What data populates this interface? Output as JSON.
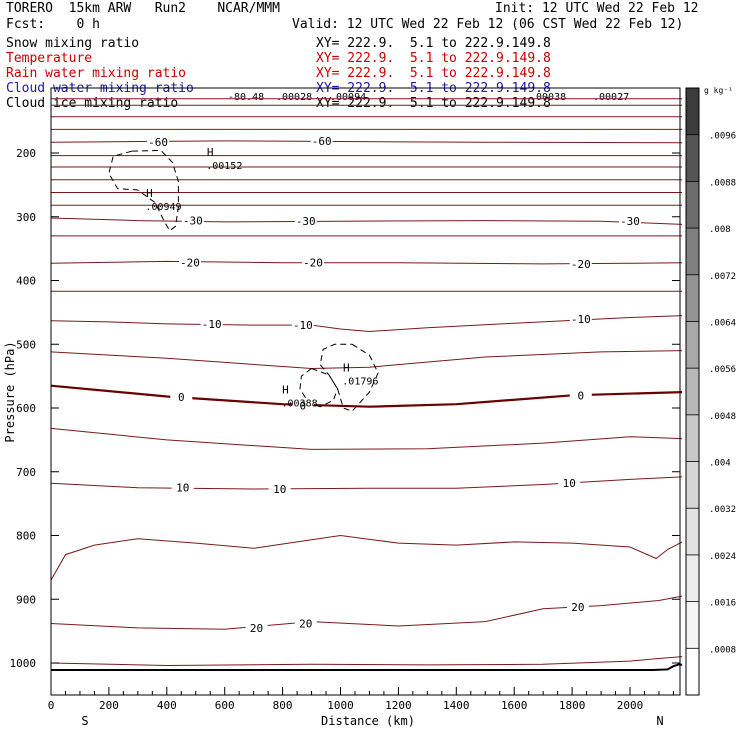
{
  "header": {
    "model": "TORERO  15km ARW   Run2    NCAR/MMM",
    "init": "Init: 12 UTC Wed 22 Feb 12",
    "fcst": "Fcst:    0 h",
    "valid": "Valid: 12 UTC Wed 22 Feb 12 (06 CST Wed 22 Feb 12)"
  },
  "fields": [
    {
      "name": "Snow mixing ratio",
      "xy": "XY= 222.9.  5.1 to 222.9.149.8",
      "color": "#000000"
    },
    {
      "name": "Temperature",
      "xy": "XY= 222.9.  5.1 to 222.9.149.8",
      "color": "#cc0000"
    },
    {
      "name": "Rain water mixing ratio",
      "xy": "XY= 222.9.  5.1 to 222.9.149.8",
      "color": "#cc0000"
    },
    {
      "name": "Cloud water mixing ratio",
      "xy": "XY= 222.9.  5.1 to 222.9.149.8",
      "color": "#1a1aa6"
    },
    {
      "name": "Cloud ice mixing ratio",
      "xy": "XY= 222.9.  5.1 to 222.9.149.8",
      "color": "#000000"
    }
  ],
  "top_values": [
    "-80.48",
    ".00028",
    ".00094",
    ".00038",
    ".00027"
  ],
  "colorbar": {
    "unit": "g kg⁻¹",
    "labels": [
      ".0096",
      ".0088",
      ".008",
      ".0072",
      ".0064",
      ".0056",
      ".0048",
      ".004",
      ".0032",
      ".0024",
      ".0016",
      ".0008"
    ],
    "shades": [
      "#3c3c3c",
      "#555555",
      "#6c6c6c",
      "#808080",
      "#949494",
      "#a8a8a8",
      "#b8b8b8",
      "#c8c8c8",
      "#d6d6d6",
      "#e2e2e2",
      "#ececec",
      "#f5f5f5",
      "#ffffff"
    ]
  },
  "chart_data": {
    "type": "contour",
    "xlabel": "Distance (km)",
    "ylabel": "Pressure (hPa)",
    "xlim": [
      0,
      2180
    ],
    "ylim": [
      1050,
      110
    ],
    "x_ticks": [
      0,
      200,
      400,
      600,
      800,
      1000,
      1200,
      1400,
      1600,
      1800,
      2000
    ],
    "y_ticks": [
      200,
      300,
      400,
      500,
      600,
      700,
      800,
      900,
      1000
    ],
    "left_end": "S",
    "right_end": "N",
    "temperature_contours": [
      {
        "value": -80,
        "points": [
          [
            0,
            115
          ],
          [
            2180,
            115
          ]
        ]
      },
      {
        "value": -75,
        "points": [
          [
            0,
            125
          ],
          [
            2180,
            125
          ]
        ]
      },
      {
        "value": -70,
        "points": [
          [
            0,
            143
          ],
          [
            2180,
            143
          ]
        ]
      },
      {
        "value": -65,
        "points": [
          [
            0,
            163
          ],
          [
            2180,
            163
          ]
        ]
      },
      {
        "value": -60,
        "points": [
          [
            0,
            183
          ],
          [
            300,
            182
          ],
          [
            600,
            181
          ],
          [
            1000,
            182
          ],
          [
            1500,
            183
          ],
          [
            2180,
            184
          ]
        ]
      },
      {
        "value": -55,
        "points": [
          [
            0,
            204
          ],
          [
            2180,
            204
          ]
        ]
      },
      {
        "value": -50,
        "points": [
          [
            0,
            222
          ],
          [
            2180,
            222
          ]
        ]
      },
      {
        "value": -45,
        "points": [
          [
            0,
            242
          ],
          [
            2180,
            242
          ]
        ]
      },
      {
        "value": -40,
        "points": [
          [
            0,
            262
          ],
          [
            2180,
            262
          ]
        ]
      },
      {
        "value": -35,
        "points": [
          [
            0,
            282
          ],
          [
            2180,
            282
          ]
        ]
      },
      {
        "value": -30,
        "points": [
          [
            0,
            302
          ],
          [
            300,
            306
          ],
          [
            600,
            308
          ],
          [
            1000,
            307
          ],
          [
            1500,
            306
          ],
          [
            1900,
            307
          ],
          [
            2180,
            312
          ]
        ]
      },
      {
        "value": -25,
        "points": [
          [
            0,
            330
          ],
          [
            2180,
            330
          ]
        ]
      },
      {
        "value": -20,
        "points": [
          [
            0,
            373
          ],
          [
            400,
            370
          ],
          [
            800,
            372
          ],
          [
            1200,
            372
          ],
          [
            1700,
            374
          ],
          [
            2000,
            373
          ],
          [
            2180,
            372
          ]
        ]
      },
      {
        "value": -15,
        "points": [
          [
            0,
            417
          ],
          [
            2180,
            417
          ]
        ]
      },
      {
        "value": -10,
        "points": [
          [
            0,
            463
          ],
          [
            200,
            465
          ],
          [
            400,
            468
          ],
          [
            700,
            470
          ],
          [
            900,
            470
          ],
          [
            1000,
            476
          ],
          [
            1100,
            480
          ],
          [
            1300,
            474
          ],
          [
            1600,
            467
          ],
          [
            2000,
            458
          ],
          [
            2180,
            455
          ]
        ]
      },
      {
        "value": -5,
        "points": [
          [
            0,
            512
          ],
          [
            400,
            522
          ],
          [
            900,
            538
          ],
          [
            1100,
            536
          ],
          [
            1500,
            520
          ],
          [
            1900,
            512
          ],
          [
            2180,
            510
          ]
        ]
      },
      {
        "value": 0,
        "points": [
          [
            0,
            565
          ],
          [
            400,
            582
          ],
          [
            800,
            594
          ],
          [
            1100,
            598
          ],
          [
            1400,
            594
          ],
          [
            1800,
            580
          ],
          [
            2180,
            575
          ]
        ]
      },
      {
        "value": 5,
        "points": [
          [
            0,
            632
          ],
          [
            400,
            650
          ],
          [
            900,
            665
          ],
          [
            1300,
            664
          ],
          [
            1700,
            655
          ],
          [
            2000,
            645
          ],
          [
            2180,
            648
          ]
        ]
      },
      {
        "value": 10,
        "points": [
          [
            0,
            718
          ],
          [
            300,
            725
          ],
          [
            700,
            727
          ],
          [
            1100,
            726
          ],
          [
            1400,
            726
          ],
          [
            1700,
            720
          ],
          [
            2000,
            712
          ],
          [
            2180,
            708
          ]
        ]
      },
      {
        "value": 15,
        "points": [
          [
            0,
            870
          ],
          [
            50,
            830
          ],
          [
            150,
            815
          ],
          [
            300,
            805
          ],
          [
            500,
            812
          ],
          [
            700,
            820
          ],
          [
            850,
            810
          ],
          [
            1000,
            800
          ],
          [
            1200,
            812
          ],
          [
            1400,
            815
          ],
          [
            1600,
            810
          ],
          [
            1800,
            812
          ],
          [
            2000,
            818
          ],
          [
            2090,
            836
          ],
          [
            2130,
            822
          ],
          [
            2180,
            810
          ]
        ]
      },
      {
        "value": 20,
        "points": [
          [
            0,
            938
          ],
          [
            300,
            945
          ],
          [
            600,
            947
          ],
          [
            900,
            935
          ],
          [
            1200,
            942
          ],
          [
            1500,
            935
          ],
          [
            1700,
            915
          ],
          [
            1900,
            910
          ],
          [
            2100,
            902
          ],
          [
            2180,
            895
          ]
        ]
      },
      {
        "value": 25,
        "points": [
          [
            0,
            1000
          ],
          [
            400,
            1004
          ],
          [
            900,
            1002
          ],
          [
            1300,
            1003
          ],
          [
            1700,
            1002
          ],
          [
            2000,
            997
          ],
          [
            2100,
            993
          ],
          [
            2180,
            990
          ]
        ]
      }
    ],
    "labels": [
      {
        "text": "-60",
        "x": 370,
        "p": 183
      },
      {
        "text": "-60",
        "x": 935,
        "p": 181
      },
      {
        "text": "-30",
        "x": 490,
        "p": 306
      },
      {
        "text": "-30",
        "x": 880,
        "p": 307
      },
      {
        "text": "-30",
        "x": 2000,
        "p": 307
      },
      {
        "text": "-20",
        "x": 480,
        "p": 372
      },
      {
        "text": "-20",
        "x": 905,
        "p": 372
      },
      {
        "text": "-20",
        "x": 1830,
        "p": 374
      },
      {
        "text": "-10",
        "x": 555,
        "p": 468
      },
      {
        "text": "-10",
        "x": 870,
        "p": 470
      },
      {
        "text": "-10",
        "x": 1830,
        "p": 460
      },
      {
        "text": "0",
        "x": 450,
        "p": 583
      },
      {
        "text": "0",
        "x": 870,
        "p": 596
      },
      {
        "text": "0",
        "x": 1830,
        "p": 580
      },
      {
        "text": "10",
        "x": 455,
        "p": 725
      },
      {
        "text": "10",
        "x": 790,
        "p": 727
      },
      {
        "text": "10",
        "x": 1790,
        "p": 718
      },
      {
        "text": "20",
        "x": 710,
        "p": 945
      },
      {
        "text": "20",
        "x": 880,
        "p": 938
      },
      {
        "text": "20",
        "x": 1820,
        "p": 912
      }
    ],
    "ice_contours": [
      {
        "points": [
          [
            280,
            197
          ],
          [
            380,
            196
          ],
          [
            420,
            215
          ],
          [
            440,
            245
          ],
          [
            440,
            285
          ],
          [
            430,
            315
          ],
          [
            410,
            322
          ],
          [
            390,
            306
          ],
          [
            360,
            278
          ],
          [
            300,
            258
          ],
          [
            230,
            256
          ],
          [
            200,
            232
          ],
          [
            215,
            205
          ],
          [
            280,
            197
          ]
        ]
      },
      {
        "points": [
          [
            1040,
            500
          ],
          [
            1100,
            517
          ],
          [
            1130,
            545
          ],
          [
            1100,
            575
          ],
          [
            1060,
            595
          ],
          [
            1040,
            605
          ],
          [
            1010,
            600
          ],
          [
            990,
            570
          ],
          [
            960,
            548
          ],
          [
            930,
            532
          ],
          [
            940,
            508
          ],
          [
            980,
            500
          ],
          [
            1040,
            500
          ]
        ]
      },
      {
        "points": [
          [
            900,
            538
          ],
          [
            960,
            548
          ],
          [
            990,
            570
          ],
          [
            975,
            588
          ],
          [
            930,
            598
          ],
          [
            890,
            592
          ],
          [
            860,
            570
          ],
          [
            865,
            550
          ],
          [
            900,
            538
          ]
        ]
      }
    ],
    "maxima": [
      {
        "label": "H",
        "value": ".00152",
        "x": 550,
        "p": 205
      },
      {
        "label": "H",
        "value": ".00949",
        "x": 340,
        "p": 269
      },
      {
        "label": "H",
        "value": ".01796",
        "x": 1020,
        "p": 543
      },
      {
        "label": "H",
        "value": ".00388",
        "x": 810,
        "p": 577
      }
    ],
    "terrain_points": [
      [
        0,
        1011
      ],
      [
        500,
        1011
      ],
      [
        1000,
        1011
      ],
      [
        1500,
        1011
      ],
      [
        2000,
        1011
      ],
      [
        2080,
        1011
      ],
      [
        2130,
        1010
      ],
      [
        2150,
        1005
      ],
      [
        2170,
        1002
      ],
      [
        2180,
        1003
      ]
    ]
  }
}
